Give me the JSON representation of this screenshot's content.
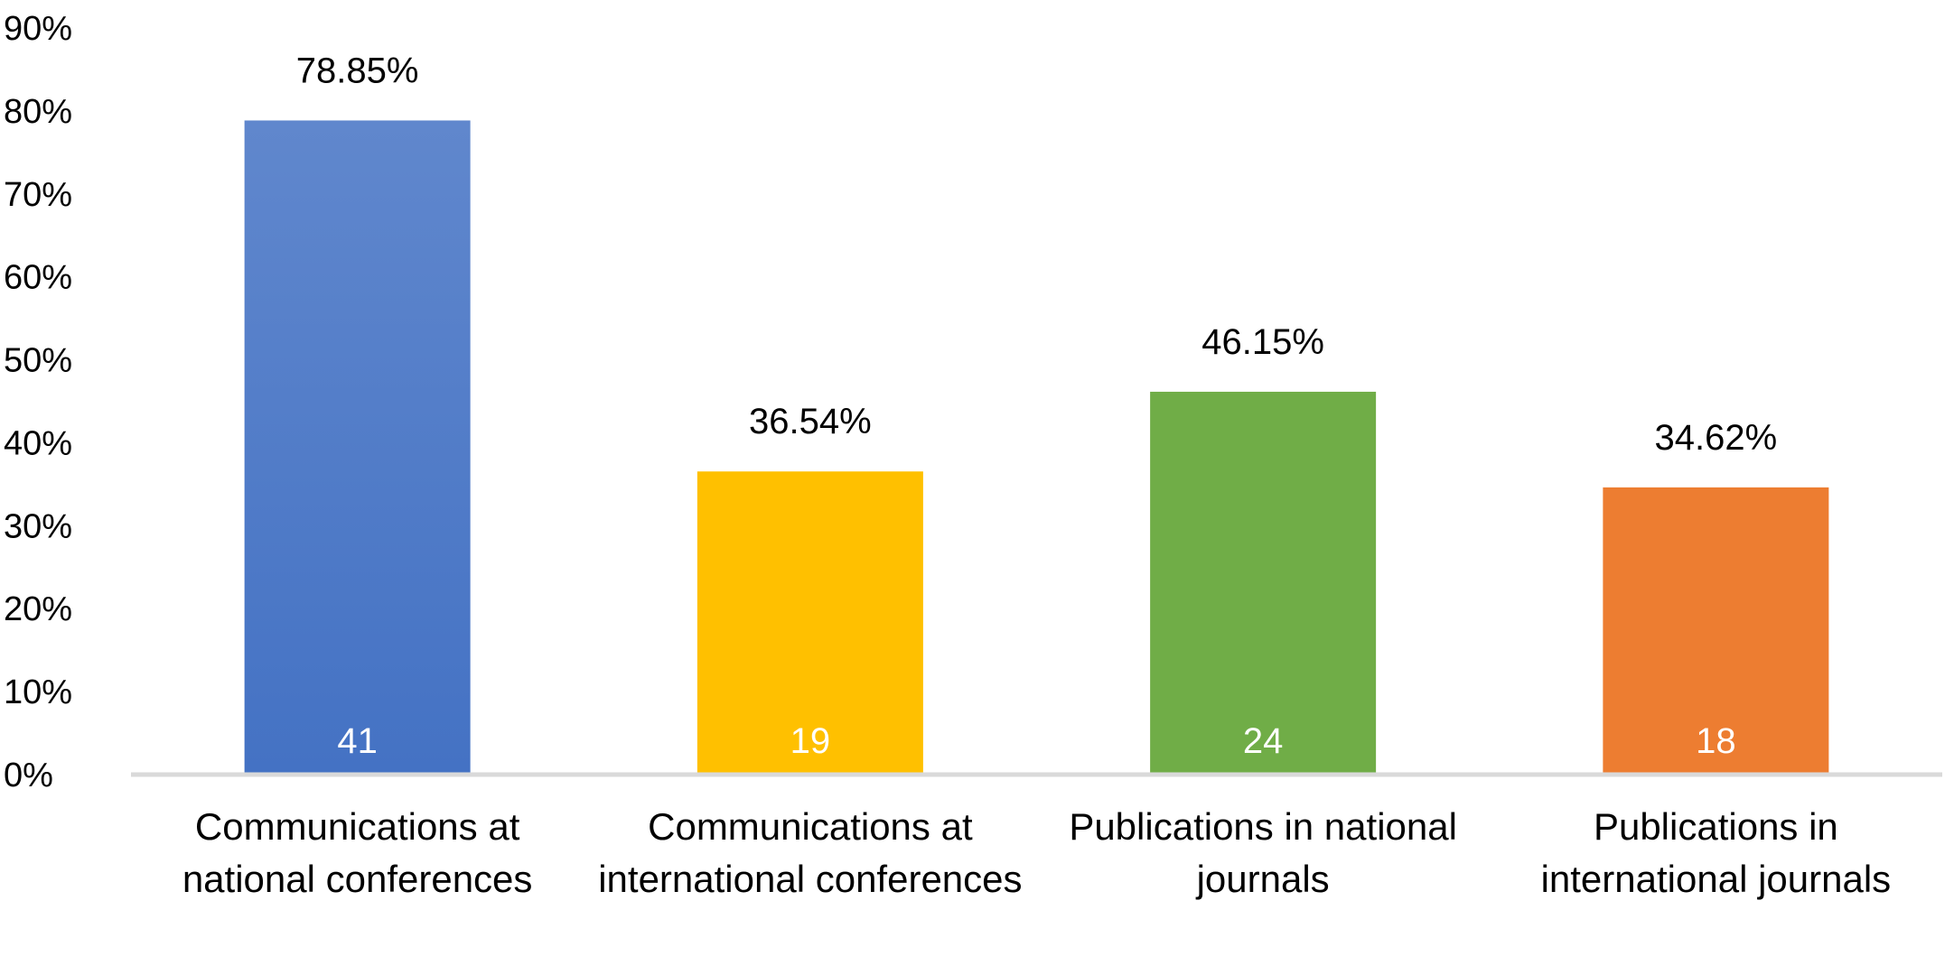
{
  "chart_data": {
    "type": "bar",
    "categories": [
      "Communications at national conferences",
      "Communications at international conferences",
      "Publications in national journals",
      "Publications in international journals"
    ],
    "values": [
      78.85,
      36.54,
      46.15,
      34.62
    ],
    "value_labels": [
      "78.85%",
      "36.54%",
      "46.15%",
      "34.62%"
    ],
    "counts": [
      41,
      19,
      24,
      18
    ],
    "colors": [
      "#4472c4",
      "#ffc000",
      "#70ad47",
      "#ed7d31"
    ],
    "ylim": [
      0,
      90
    ],
    "yticks": [
      {
        "value": 0,
        "label": "0%"
      },
      {
        "value": 10,
        "label": "10%"
      },
      {
        "value": 20,
        "label": "20%"
      },
      {
        "value": 30,
        "label": "30%"
      },
      {
        "value": 40,
        "label": "40%"
      },
      {
        "value": 50,
        "label": "50%"
      },
      {
        "value": 60,
        "label": "60%"
      },
      {
        "value": 70,
        "label": "70%"
      },
      {
        "value": 80,
        "label": "80%"
      },
      {
        "value": 90,
        "label": "90%"
      }
    ],
    "grid": false
  }
}
